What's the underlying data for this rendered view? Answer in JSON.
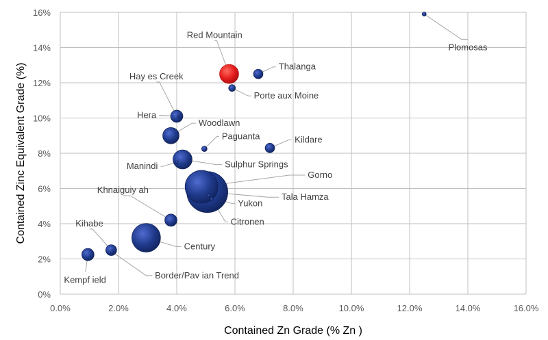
{
  "chart_data": {
    "type": "bubble",
    "xlabel": "Contained Zn Grade (% Zn )",
    "ylabel": "Contained Zinc Equivalent Grade (%)",
    "xlim": [
      0,
      16
    ],
    "ylim": [
      0,
      16
    ],
    "x_ticks": [
      "0.0%",
      "2.0%",
      "4.0%",
      "6.0%",
      "8.0%",
      "10.0%",
      "12.0%",
      "14.0%",
      "16.0%"
    ],
    "y_ticks": [
      "0%",
      "2%",
      "4%",
      "6%",
      "8%",
      "10%",
      "12%",
      "14%",
      "16%"
    ],
    "grid": true,
    "colors": {
      "default": "#1f3a8a",
      "highlight": "#e31b1b"
    },
    "points": [
      {
        "name": "Plomosas",
        "x": 12.5,
        "y": 15.9,
        "r": 3
      },
      {
        "name": "Red Mountain",
        "x": 5.8,
        "y": 12.5,
        "r": 14,
        "highlight": true
      },
      {
        "name": "Thalanga",
        "x": 6.8,
        "y": 12.5,
        "r": 7
      },
      {
        "name": "Porte aux Moine",
        "x": 5.9,
        "y": 11.7,
        "r": 5
      },
      {
        "name": "Hay es Creek",
        "x": 4.0,
        "y": 10.1,
        "r": 9
      },
      {
        "name": "Hera",
        "x": 4.05,
        "y": 10.1,
        "r": 2
      },
      {
        "name": "Woodlawn",
        "x": 3.8,
        "y": 9.0,
        "r": 12
      },
      {
        "name": "Paguanta",
        "x": 4.95,
        "y": 8.25,
        "r": 4
      },
      {
        "name": "Kildare",
        "x": 7.2,
        "y": 8.3,
        "r": 7
      },
      {
        "name": "Sulphur Springs",
        "x": 4.2,
        "y": 7.65,
        "r": 14
      },
      {
        "name": "Manindi",
        "x": 4.0,
        "y": 7.5,
        "r": 2
      },
      {
        "name": "Gorno",
        "x": 4.85,
        "y": 6.1,
        "r": 24
      },
      {
        "name": "Tala Hamza",
        "x": 5.05,
        "y": 5.8,
        "r": 30
      },
      {
        "name": "Yukon",
        "x": 5.1,
        "y": 5.6,
        "r": 2
      },
      {
        "name": "Citronen",
        "x": 5.2,
        "y": 5.4,
        "r": 2
      },
      {
        "name": "Khnaiguiy ah",
        "x": 3.8,
        "y": 4.2,
        "r": 9
      },
      {
        "name": "Century",
        "x": 2.95,
        "y": 3.2,
        "r": 21
      },
      {
        "name": "Kihabe",
        "x": 1.75,
        "y": 2.5,
        "r": 8
      },
      {
        "name": "Border/Pav ian Trend",
        "x": 1.78,
        "y": 2.4,
        "r": 2
      },
      {
        "name": "Kempf ield",
        "x": 0.95,
        "y": 2.25,
        "r": 9
      }
    ],
    "labels": [
      {
        "name": "Plomosas",
        "lx": 14.0,
        "ly": 13.85,
        "anchor": "middle",
        "leader": true
      },
      {
        "name": "Red Mountain",
        "lx": 5.3,
        "ly": 14.55,
        "anchor": "middle",
        "leader": true
      },
      {
        "name": "Thalanga",
        "lx": 7.5,
        "ly": 12.75,
        "anchor": "start",
        "leader": true
      },
      {
        "name": "Porte aux Moine",
        "lx": 6.65,
        "ly": 11.1,
        "anchor": "start",
        "leader": true
      },
      {
        "name": "Hay es Creek",
        "lx": 3.3,
        "ly": 12.2,
        "anchor": "middle",
        "leader": true
      },
      {
        "name": "Hera",
        "lx": 3.3,
        "ly": 10.0,
        "anchor": "end",
        "leader": true
      },
      {
        "name": "Woodlawn",
        "lx": 4.75,
        "ly": 9.55,
        "anchor": "start",
        "leader": true
      },
      {
        "name": "Paguanta",
        "lx": 5.55,
        "ly": 8.8,
        "anchor": "start",
        "leader": true
      },
      {
        "name": "Kildare",
        "lx": 8.05,
        "ly": 8.6,
        "anchor": "start",
        "leader": true
      },
      {
        "name": "Sulphur Springs",
        "lx": 5.65,
        "ly": 7.2,
        "anchor": "start",
        "leader": true
      },
      {
        "name": "Manindi",
        "lx": 3.35,
        "ly": 7.1,
        "anchor": "end",
        "leader": true
      },
      {
        "name": "Gorno",
        "lx": 8.5,
        "ly": 6.6,
        "anchor": "start",
        "leader": true
      },
      {
        "name": "Tala Hamza",
        "lx": 7.6,
        "ly": 5.35,
        "anchor": "start",
        "leader": true
      },
      {
        "name": "Yukon",
        "lx": 6.1,
        "ly": 5.0,
        "anchor": "start",
        "leader": true
      },
      {
        "name": "Citronen",
        "lx": 5.85,
        "ly": 3.95,
        "anchor": "start",
        "leader": true
      },
      {
        "name": "Khnaiguiy ah",
        "lx": 2.15,
        "ly": 5.75,
        "anchor": "middle",
        "leader": true
      },
      {
        "name": "Century",
        "lx": 4.25,
        "ly": 2.55,
        "anchor": "start",
        "leader": true
      },
      {
        "name": "Kihabe",
        "lx": 1.0,
        "ly": 3.85,
        "anchor": "middle",
        "leader": true
      },
      {
        "name": "Border/Pav ian Trend",
        "lx": 3.25,
        "ly": 0.9,
        "anchor": "start",
        "leader": true
      },
      {
        "name": "Kempf ield",
        "lx": 0.85,
        "ly": 0.65,
        "anchor": "middle",
        "leader": true
      }
    ]
  }
}
